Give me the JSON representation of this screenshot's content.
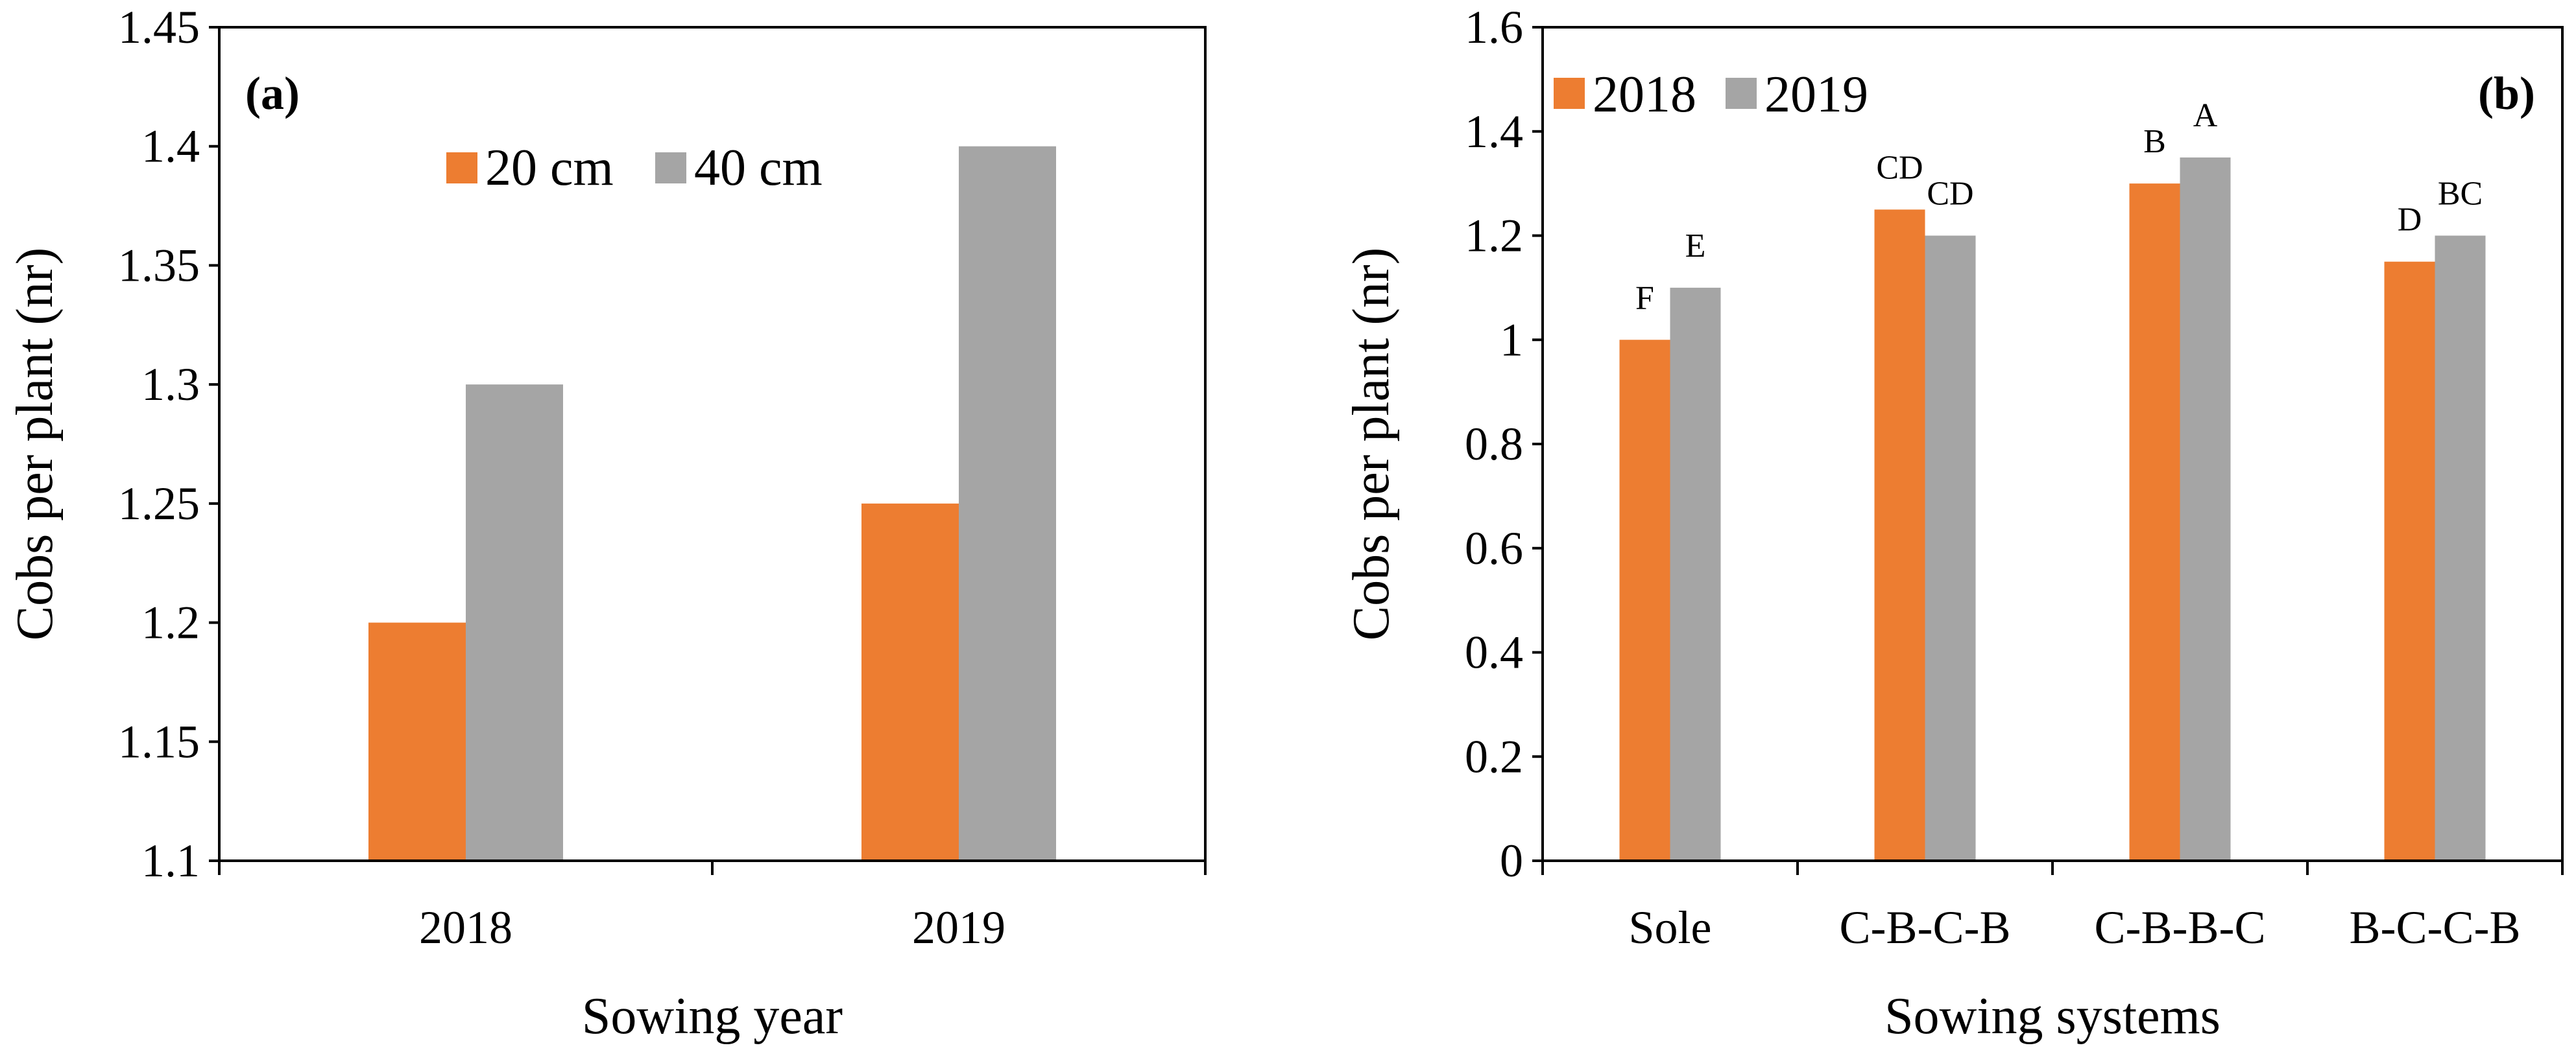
{
  "chart_data": [
    {
      "type": "bar",
      "panel_label": "(a)",
      "categories": [
        "2018",
        "2019"
      ],
      "series": [
        {
          "name": "20 cm",
          "color": "#ED7D31",
          "values": [
            1.2,
            1.25
          ]
        },
        {
          "name": "40 cm",
          "color": "#A5A5A5",
          "values": [
            1.3,
            1.4
          ]
        }
      ],
      "xlabel": "Sowing year",
      "ylabel": "Cobs per plant (nr)",
      "ylim": [
        1.1,
        1.45
      ],
      "yticks": [
        "1.1",
        "1.15",
        "1.2",
        "1.25",
        "1.3",
        "1.35",
        "1.4",
        "1.45"
      ],
      "legend_position": "top-center",
      "grid": false
    },
    {
      "type": "bar",
      "panel_label": "(b)",
      "categories": [
        "Sole",
        "C-B-C-B",
        "C-B-B-C",
        "B-C-C-B"
      ],
      "series": [
        {
          "name": "2018",
          "color": "#ED7D31",
          "values": [
            1.0,
            1.25,
            1.3,
            1.15
          ],
          "labels": [
            "F",
            "CD",
            "B",
            "D"
          ]
        },
        {
          "name": "2019",
          "color": "#A5A5A5",
          "values": [
            1.1,
            1.2,
            1.35,
            1.2
          ],
          "labels": [
            "E",
            "CD",
            "A",
            "BC"
          ]
        }
      ],
      "xlabel": "Sowing systems",
      "ylabel": "Cobs per plant (nr)",
      "ylim": [
        0,
        1.6
      ],
      "yticks": [
        "0",
        "0.2",
        "0.4",
        "0.6",
        "0.8",
        "1",
        "1.2",
        "1.4",
        "1.6"
      ],
      "legend_position": "top-left",
      "grid": false
    }
  ]
}
